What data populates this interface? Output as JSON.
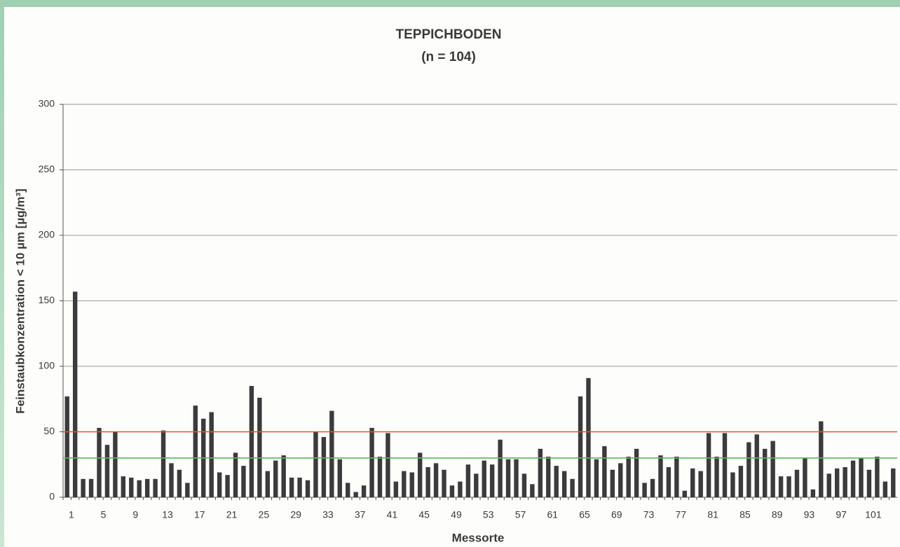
{
  "chart_data": {
    "type": "bar",
    "title": "TEPPICHBODEN",
    "subtitle": "(n = 104)",
    "y_label": "Feinstaubkonzentration < 10 µm [µg/m³]",
    "x_label": "Messorte",
    "categories": [
      "1",
      null,
      null,
      null,
      "5",
      null,
      null,
      null,
      "9",
      null,
      null,
      null,
      "13",
      null,
      null,
      null,
      "17",
      null,
      null,
      null,
      "21",
      null,
      null,
      null,
      "25",
      null,
      null,
      null,
      "29",
      null,
      null,
      null,
      "33",
      null,
      null,
      null,
      "37",
      null,
      null,
      null,
      "41",
      null,
      null,
      null,
      "45",
      null,
      null,
      null,
      "49",
      null,
      null,
      null,
      "53",
      null,
      null,
      null,
      "57",
      null,
      null,
      null,
      "61",
      null,
      null,
      null,
      "65",
      null,
      null,
      null,
      "69",
      null,
      null,
      null,
      "73",
      null,
      null,
      null,
      "77",
      null,
      null,
      null,
      "81",
      null,
      null,
      null,
      "85",
      null,
      null,
      null,
      "89",
      null,
      null,
      null,
      "93",
      null,
      null,
      null,
      "97",
      null,
      null,
      null,
      "101",
      null,
      null,
      null
    ],
    "values": [
      77,
      157,
      14,
      14,
      53,
      40,
      50,
      16,
      15,
      13,
      14,
      14,
      51,
      26,
      21,
      11,
      70,
      60,
      65,
      19,
      17,
      34,
      24,
      85,
      76,
      20,
      28,
      32,
      15,
      15,
      13,
      50,
      46,
      66,
      29,
      11,
      4,
      9,
      53,
      31,
      49,
      12,
      20,
      19,
      34,
      23,
      26,
      21,
      9,
      12,
      25,
      18,
      28,
      25,
      44,
      29,
      29,
      18,
      10,
      37,
      31,
      24,
      20,
      14,
      77,
      91,
      29,
      39,
      21,
      26,
      31,
      37,
      11,
      14,
      32,
      23,
      31,
      5,
      22,
      20,
      49,
      31,
      49,
      19,
      24,
      42,
      48,
      37,
      43,
      16,
      16,
      21,
      30,
      6,
      58,
      18,
      22,
      23,
      28,
      30,
      21,
      31,
      12,
      22
    ],
    "color": "#3b3b3d",
    "ylim": [
      0,
      300
    ],
    "yticks": [
      0,
      50,
      100,
      150,
      200,
      250,
      300
    ],
    "grid": true,
    "reference_lines": [
      {
        "value": 50,
        "color": "#e0503c"
      },
      {
        "value": 30,
        "color": "#5cb85c"
      }
    ]
  }
}
